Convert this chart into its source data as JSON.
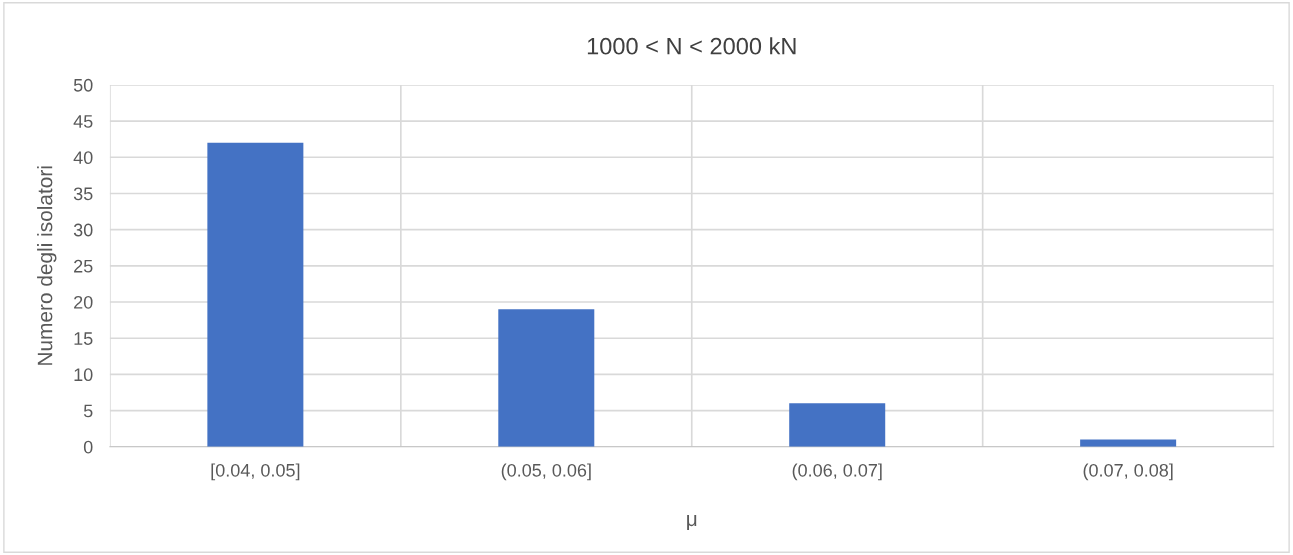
{
  "chart_data": {
    "type": "bar",
    "title": "1000 < N < 2000 kN",
    "xlabel": "μ",
    "ylabel": "Numero degli isolatori",
    "categories": [
      "[0.04, 0.05]",
      "(0.05, 0.06]",
      "(0.06, 0.07]",
      "(0.07, 0.08]"
    ],
    "values": [
      42,
      19,
      6,
      1
    ],
    "color": "#4472c4",
    "ylim": [
      0,
      50
    ],
    "yticks": [
      0,
      5,
      10,
      15,
      20,
      25,
      30,
      35,
      40,
      45,
      50
    ],
    "grid": true
  }
}
